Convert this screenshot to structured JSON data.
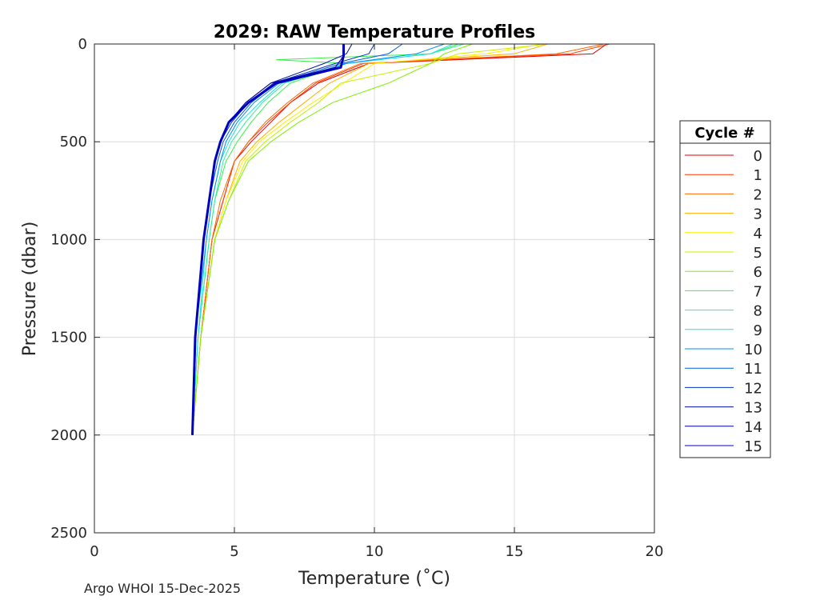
{
  "chart_data": {
    "type": "line",
    "title": "2029: RAW Temperature Profiles",
    "xlabel": "Temperature (˚C)",
    "ylabel": "Pressure (dbar)",
    "xlim": [
      0,
      20
    ],
    "ylim": [
      0,
      2500
    ],
    "y_reversed": true,
    "grid": true,
    "x_ticks": [
      "0",
      "5",
      "10",
      "15",
      "20"
    ],
    "y_ticks": [
      "0",
      "500",
      "1000",
      "1500",
      "2000",
      "2500"
    ],
    "legend": {
      "title": "Cycle #",
      "position": "right"
    },
    "series": [
      {
        "name": "0",
        "color": "#e00000",
        "depth": [
          0,
          50,
          100,
          200,
          300,
          400,
          500,
          600,
          800,
          1000,
          1500,
          2000
        ],
        "temperature": [
          18.3,
          17.8,
          9.8,
          8.0,
          7.0,
          6.3,
          5.6,
          5.0,
          4.6,
          4.2,
          3.8,
          3.5
        ]
      },
      {
        "name": "1",
        "color": "#ff3300",
        "depth": [
          0,
          50,
          100,
          200,
          300,
          400,
          500,
          600,
          800,
          1000,
          1500,
          2000
        ],
        "temperature": [
          18.4,
          17.0,
          9.6,
          7.9,
          7.0,
          6.2,
          5.5,
          5.0,
          4.6,
          4.2,
          3.8,
          3.5
        ]
      },
      {
        "name": "2",
        "color": "#ff6a00",
        "depth": [
          0,
          50,
          100,
          200,
          300,
          400,
          500,
          600,
          800,
          1000,
          1500,
          2000
        ],
        "temperature": [
          18.2,
          16.5,
          9.5,
          7.8,
          6.9,
          6.1,
          5.5,
          5.0,
          4.5,
          4.2,
          3.8,
          3.5
        ]
      },
      {
        "name": "3",
        "color": "#ffb000",
        "depth": [
          0,
          50,
          100,
          200,
          300,
          400,
          500,
          600,
          800,
          1000,
          1500,
          2000
        ],
        "temperature": [
          16.2,
          15.0,
          9.8,
          8.4,
          7.5,
          6.6,
          5.8,
          5.2,
          4.7,
          4.3,
          3.8,
          3.5
        ]
      },
      {
        "name": "4",
        "color": "#ffee00",
        "depth": [
          0,
          50,
          100,
          200,
          300,
          400,
          500,
          600,
          800,
          1000,
          1500,
          2000
        ],
        "temperature": [
          16.0,
          14.0,
          10.0,
          8.9,
          7.8,
          6.8,
          5.9,
          5.3,
          4.7,
          4.3,
          3.8,
          3.5
        ]
      },
      {
        "name": "5",
        "color": "#c8f000",
        "depth": [
          0,
          50,
          100,
          200,
          300,
          400,
          500,
          600,
          800,
          1000,
          1500,
          2000
        ],
        "temperature": [
          16.2,
          13.0,
          12.0,
          8.8,
          8.0,
          7.0,
          6.1,
          5.4,
          4.8,
          4.3,
          3.8,
          3.5
        ]
      },
      {
        "name": "6",
        "color": "#7ef000",
        "depth": [
          0,
          50,
          100,
          200,
          300,
          400,
          500,
          600,
          800,
          1000,
          1500,
          2000
        ],
        "temperature": [
          13.5,
          12.5,
          12.0,
          10.5,
          8.5,
          7.3,
          6.3,
          5.5,
          4.8,
          4.3,
          3.8,
          3.5
        ]
      },
      {
        "name": "7",
        "color": "#39f04a",
        "depth": [
          0,
          50,
          80,
          100,
          200,
          300,
          400,
          500,
          600,
          800,
          1000,
          1500,
          2000
        ],
        "temperature": [
          13.0,
          12.0,
          6.5,
          9.0,
          7.0,
          6.2,
          5.6,
          5.1,
          4.7,
          4.3,
          4.1,
          3.7,
          3.5
        ]
      },
      {
        "name": "8",
        "color": "#2ef0a0",
        "depth": [
          0,
          50,
          100,
          200,
          300,
          400,
          500,
          600,
          800,
          1000,
          1500,
          2000
        ],
        "temperature": [
          13.2,
          12.0,
          9.0,
          6.8,
          6.0,
          5.4,
          4.9,
          4.6,
          4.3,
          4.1,
          3.7,
          3.5
        ]
      },
      {
        "name": "9",
        "color": "#22e0e0",
        "depth": [
          0,
          50,
          100,
          200,
          300,
          400,
          500,
          600,
          800,
          1000,
          1500,
          2000
        ],
        "temperature": [
          12.8,
          12.0,
          9.0,
          6.7,
          5.9,
          5.2,
          4.8,
          4.5,
          4.2,
          4.0,
          3.7,
          3.5
        ]
      },
      {
        "name": "10",
        "color": "#0090f0",
        "depth": [
          0,
          50,
          100,
          200,
          300,
          400,
          500,
          600,
          800,
          1000,
          1500,
          2000
        ],
        "temperature": [
          12.5,
          11.5,
          9.0,
          6.6,
          5.7,
          5.1,
          4.7,
          4.5,
          4.2,
          4.0,
          3.6,
          3.5
        ]
      },
      {
        "name": "11",
        "color": "#0060e0",
        "depth": [
          0,
          50,
          100,
          200,
          300,
          400,
          500,
          600,
          800,
          1000,
          1500,
          2000
        ],
        "temperature": [
          11.0,
          10.5,
          8.8,
          6.5,
          5.6,
          5.0,
          4.6,
          4.4,
          4.1,
          3.9,
          3.6,
          3.5
        ]
      },
      {
        "name": "12",
        "color": "#0030c0",
        "depth": [
          0,
          50,
          100,
          200,
          300,
          400,
          500,
          600,
          800,
          1000,
          1500,
          2000
        ],
        "temperature": [
          10.0,
          9.8,
          8.6,
          6.4,
          5.5,
          4.9,
          4.5,
          4.3,
          4.1,
          3.9,
          3.6,
          3.5
        ]
      },
      {
        "name": "13",
        "color": "#0010a8",
        "depth": [
          0,
          50,
          100,
          200,
          300,
          400,
          500,
          600,
          800,
          1000,
          1500,
          2000
        ],
        "temperature": [
          9.2,
          9.0,
          8.2,
          6.3,
          5.4,
          4.8,
          4.5,
          4.3,
          4.1,
          3.9,
          3.6,
          3.5
        ]
      },
      {
        "name": "14",
        "color": "#0000a0",
        "depth": [
          0,
          60,
          120,
          200,
          300,
          400,
          500,
          600,
          800,
          1000,
          1500,
          2000
        ],
        "temperature": [
          8.9,
          8.9,
          8.6,
          6.3,
          5.4,
          4.8,
          4.5,
          4.3,
          4.1,
          3.9,
          3.6,
          3.5
        ]
      },
      {
        "name": "15",
        "color": "#0000c0",
        "depth": [
          0,
          60,
          120,
          200,
          300,
          400,
          500,
          600,
          800,
          1000,
          1500,
          2000
        ],
        "temperature": [
          8.9,
          8.9,
          8.8,
          6.5,
          5.5,
          4.8,
          4.5,
          4.3,
          4.1,
          3.9,
          3.6,
          3.5
        ]
      }
    ]
  },
  "footer": {
    "note": "Argo WHOI 15-Dec-2025"
  }
}
